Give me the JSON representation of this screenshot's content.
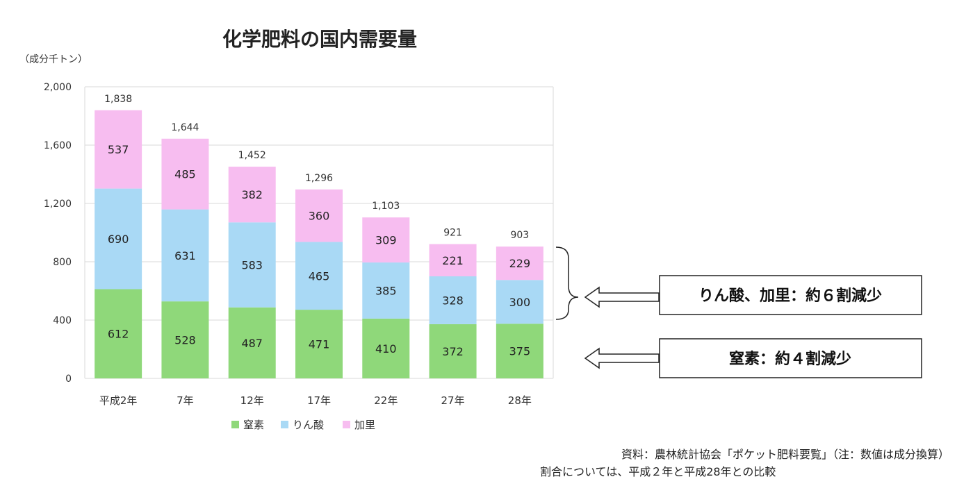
{
  "chart_data": {
    "type": "bar",
    "stacked": true,
    "title": "化学肥料の国内需要量",
    "ylabel": "（成分千トン）",
    "ylim": [
      0,
      2000
    ],
    "yticks": [
      0,
      400,
      800,
      1200,
      1600,
      2000
    ],
    "ytick_labels": [
      "0",
      "400",
      "800",
      "1,200",
      "1,600",
      "2,000"
    ],
    "grid": true,
    "legend_position": "bottom",
    "categories": [
      "平成2年",
      "7年",
      "12年",
      "17年",
      "22年",
      "27年",
      "28年"
    ],
    "series": [
      {
        "name": "窒素",
        "color": "#8fd87a",
        "values": [
          612,
          528,
          487,
          471,
          410,
          372,
          375
        ]
      },
      {
        "name": "りん酸",
        "color": "#a9d9f5",
        "values": [
          690,
          631,
          583,
          465,
          385,
          328,
          300
        ]
      },
      {
        "name": "加里",
        "color": "#f7bdf0",
        "values": [
          537,
          485,
          382,
          360,
          309,
          221,
          229
        ]
      }
    ],
    "totals": [
      "1,838",
      "1,644",
      "1,452",
      "1,296",
      "1,103",
      "921",
      "903"
    ]
  },
  "callouts": {
    "upper": "りん酸、加里：約６割減少",
    "lower": "窒素：約４割減少"
  },
  "notes": {
    "source": "資料：農林統計協会「ポケット肥料要覧」（注：数値は成分換算）",
    "ratio": "割合については、平成２年と平成28年との比較"
  }
}
